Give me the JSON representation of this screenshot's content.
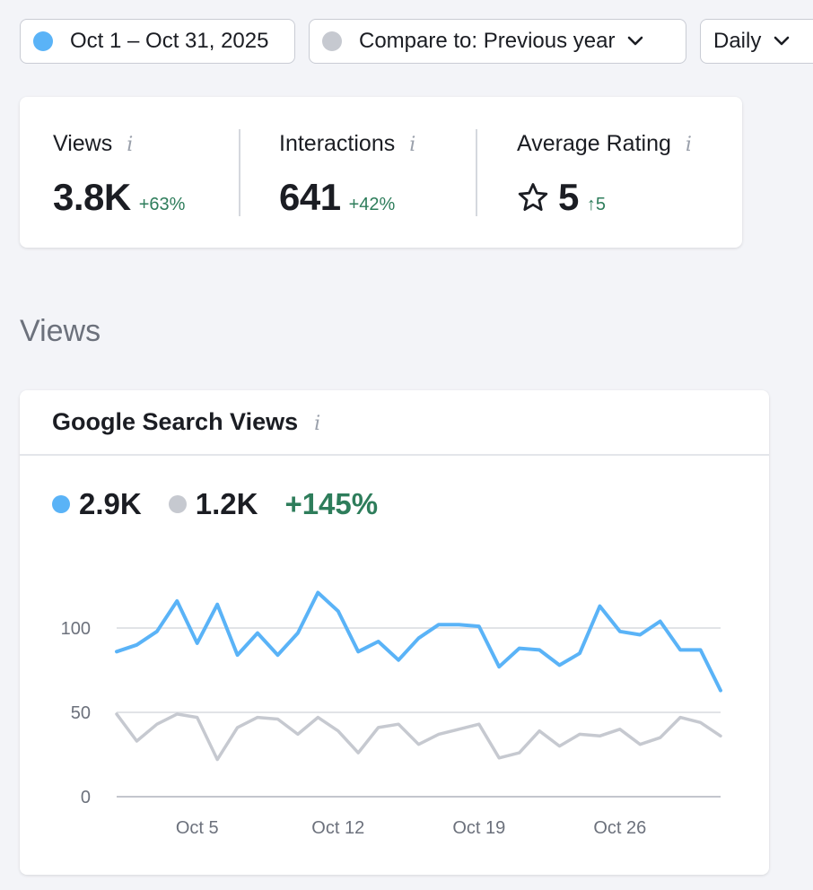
{
  "filters": {
    "date_range": "Oct 1 – Oct 31, 2025",
    "date_range_color": "#5ab3f7",
    "compare_label": "Compare to: Previous year",
    "compare_color": "#c6c9d0",
    "granularity": "Daily"
  },
  "summary": {
    "views": {
      "label": "Views",
      "value": "3.8K",
      "delta": "+63%"
    },
    "interactions": {
      "label": "Interactions",
      "value": "641",
      "delta": "+42%"
    },
    "rating": {
      "label": "Average Rating",
      "value": "5",
      "delta": "↑5"
    }
  },
  "section_title": "Views",
  "views_card": {
    "title": "Google Search Views",
    "current_total": "2.9K",
    "previous_total": "1.2K",
    "change": "+145%"
  },
  "icons": {
    "info": "i",
    "chevron": "chevron-down-icon",
    "star": "star-outline-icon"
  },
  "colors": {
    "current_series": "#5ab3f7",
    "previous_series": "#c6c9d0",
    "positive": "#2e7d5b"
  },
  "chart_data": {
    "type": "line",
    "x": [
      "Oct 1",
      "Oct 2",
      "Oct 3",
      "Oct 4",
      "Oct 5",
      "Oct 6",
      "Oct 7",
      "Oct 8",
      "Oct 9",
      "Oct 10",
      "Oct 11",
      "Oct 12",
      "Oct 13",
      "Oct 14",
      "Oct 15",
      "Oct 16",
      "Oct 17",
      "Oct 18",
      "Oct 19",
      "Oct 20",
      "Oct 21",
      "Oct 22",
      "Oct 23",
      "Oct 24",
      "Oct 25",
      "Oct 26",
      "Oct 27",
      "Oct 28",
      "Oct 29",
      "Oct 30",
      "Oct 31"
    ],
    "series": [
      {
        "values": [
          86,
          90,
          98,
          116,
          91,
          114,
          84,
          97,
          84,
          97,
          121,
          110,
          86,
          92,
          81,
          94,
          102,
          102,
          101,
          77,
          88,
          87,
          78,
          85,
          113,
          98,
          96,
          104,
          87,
          87,
          63
        ],
        "color": "#5ab3f7"
      },
      {
        "values": [
          49,
          33,
          43,
          49,
          47,
          22,
          41,
          47,
          46,
          37,
          47,
          39,
          26,
          41,
          43,
          31,
          37,
          40,
          43,
          23,
          26,
          39,
          30,
          37,
          36,
          40,
          31,
          35,
          47,
          44,
          36
        ],
        "color": "#c6c9d0"
      }
    ],
    "x_ticks": [
      "Oct 5",
      "Oct 12",
      "Oct 19",
      "Oct 26"
    ],
    "y_ticks": [
      0,
      50,
      100
    ],
    "ylim": [
      0,
      140
    ],
    "grid": true
  }
}
